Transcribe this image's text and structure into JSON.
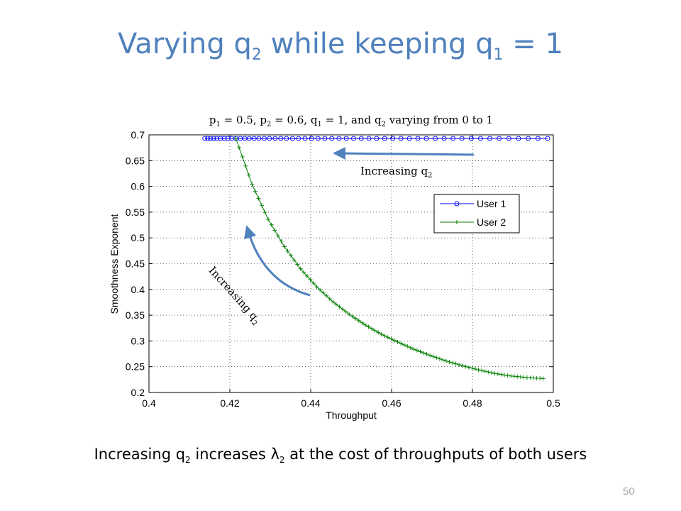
{
  "slide": {
    "title_main": "Varying q",
    "title_sub1": "2",
    "title_mid": " while keeping q",
    "title_sub2": "1",
    "title_end": " = 1",
    "caption_a": "Increasing q",
    "caption_a_sub": "2",
    "caption_b": " increases λ",
    "caption_b_sub": "2",
    "caption_c": " at the cost of throughputs of both users",
    "page_number": "50"
  },
  "annotations": {
    "top": {
      "text": "Increasing q",
      "sub": "2"
    },
    "left": {
      "text": "Increasing q",
      "sub": "2"
    }
  },
  "colors": {
    "title": "#4f81bd",
    "user1": "#0000ff",
    "user2": "#007f00",
    "arrow": "#4f81bd"
  },
  "chart_data": {
    "type": "line",
    "subtitle_parts": {
      "p1": "p",
      "p1_sub": "1",
      "p1_val": " = 0.5, ",
      "p2": "p",
      "p2_sub": "2",
      "p2_val": " = 0.6, ",
      "q1": "q",
      "q1_sub": "1",
      "q1_val": " = 1, and ",
      "q2": "q",
      "q2_sub": "2",
      "q2_val": " varying from 0 to 1"
    },
    "xlabel": "Throughput",
    "ylabel": "Smoothness Exponent",
    "xlim": [
      0.4,
      0.5
    ],
    "ylim": [
      0.2,
      0.7
    ],
    "xticks": [
      "0.4",
      "0.42",
      "0.44",
      "0.46",
      "0.48",
      "0.5"
    ],
    "yticks": [
      "0.2",
      "0.25",
      "0.3",
      "0.35",
      "0.4",
      "0.45",
      "0.5",
      "0.55",
      "0.6",
      "0.65",
      "0.7"
    ],
    "grid": true,
    "legend": "upper-right",
    "series": [
      {
        "name": "User 1",
        "marker": "circle",
        "y_constant": 0.693,
        "x": [
          0.4138,
          0.4145,
          0.4152,
          0.416,
          0.4168,
          0.4177,
          0.4186,
          0.4195,
          0.4205,
          0.4215,
          0.4226,
          0.4237,
          0.4248,
          0.426,
          0.4272,
          0.4285,
          0.4298,
          0.4312,
          0.4326,
          0.434,
          0.4355,
          0.437,
          0.4386,
          0.4402,
          0.4418,
          0.4435,
          0.4452,
          0.447,
          0.4488,
          0.4506,
          0.4525,
          0.4544,
          0.4563,
          0.4583,
          0.4603,
          0.4623,
          0.4644,
          0.4665,
          0.4686,
          0.4708,
          0.473,
          0.4752,
          0.4774,
          0.4797,
          0.482,
          0.4843,
          0.4866,
          0.489,
          0.4914,
          0.4938,
          0.4962,
          0.4986
        ]
      },
      {
        "name": "User 2",
        "marker": "plus",
        "x": [
          0.4215,
          0.4255,
          0.4295,
          0.4335,
          0.4375,
          0.4415,
          0.4455,
          0.4495,
          0.4535,
          0.4575,
          0.4615,
          0.4655,
          0.4695,
          0.4735,
          0.4775,
          0.4815,
          0.4855,
          0.4895,
          0.4935,
          0.4975
        ],
        "y": [
          0.693,
          0.604,
          0.536,
          0.483,
          0.44,
          0.405,
          0.376,
          0.352,
          0.331,
          0.313,
          0.298,
          0.284,
          0.272,
          0.261,
          0.252,
          0.244,
          0.237,
          0.232,
          0.229,
          0.227
        ]
      }
    ]
  }
}
